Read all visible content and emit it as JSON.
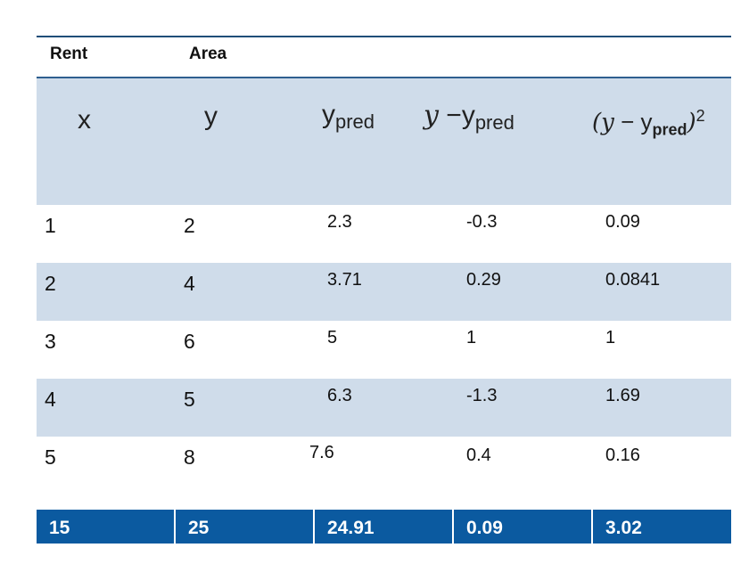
{
  "labels": {
    "rent": "Rent",
    "area": "Area"
  },
  "headers": {
    "x": "x",
    "y": "y",
    "ypred_base": "y",
    "ypred_sub": "pred",
    "diff_y": "y",
    "diff_minus": " −",
    "diff_base": "y",
    "diff_sub": "pred",
    "sq_open": "(",
    "sq_y": "y",
    "sq_minus": " − ",
    "sq_base": "y",
    "sq_sub": "pred",
    "sq_close": ")",
    "sq_pow": "2"
  },
  "rows": [
    {
      "x": "1",
      "y": "2",
      "ypred": "2.3",
      "diff": "-0.3",
      "sq": "0.09"
    },
    {
      "x": "2",
      "y": "4",
      "ypred": "3.71",
      "diff": "0.29",
      "sq": "0.0841"
    },
    {
      "x": "3",
      "y": "6",
      "ypred": "5",
      "diff": "1",
      "sq": "1"
    },
    {
      "x": "4",
      "y": "5",
      "ypred": "6.3",
      "diff": "-1.3",
      "sq": "1.69"
    },
    {
      "x": "5",
      "y": "8",
      "ypred": "7.6",
      "diff": "0.4",
      "sq": "0.16"
    }
  ],
  "totals": {
    "x": "15",
    "y": "25",
    "ypred": "24.91",
    "diff": "0.09",
    "sq": "3.02"
  },
  "colors": {
    "band": "#cfdcea",
    "total_bg": "#0b5aa0",
    "rule": "#1f4e79"
  }
}
